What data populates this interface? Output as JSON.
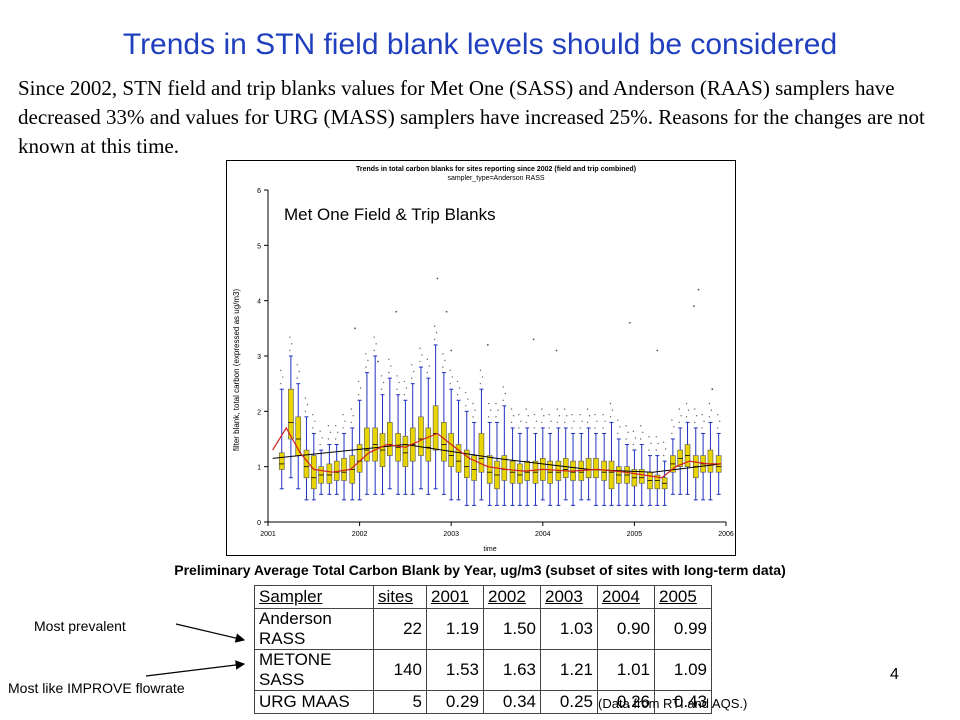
{
  "slide": {
    "title": "Trends in STN field blank levels should be considered",
    "body": "Since 2002, STN field and trip blanks values for Met One (SASS) and Anderson (RAAS) samplers have decreased 33% and values for URG (MASS) samplers have increased 25%.  Reasons for the changes are not known at this time.",
    "page_number": "4",
    "source_note": "(Data from RTI and AQS.)",
    "callout_prevalent": "Most prevalent",
    "callout_improve": "Most like IMPROVE flowrate",
    "table_caption": "Preliminary Average Total Carbon Blank by Year, ug/m3 (subset of sites with long-term data)"
  },
  "table": {
    "headers": [
      "Sampler",
      "sites",
      "2001",
      "2002",
      "2003",
      "2004",
      "2005"
    ],
    "rows": [
      [
        "Anderson RASS",
        "22",
        "1.19",
        "1.50",
        "1.03",
        "0.90",
        "0.99"
      ],
      [
        "METONE SASS",
        "140",
        "1.53",
        "1.63",
        "1.21",
        "1.01",
        "1.09"
      ],
      [
        "URG MAAS",
        "5",
        "0.29",
        "0.34",
        "0.25",
        "0.26",
        "0.43"
      ]
    ]
  },
  "chart_data": {
    "type": "box",
    "title": "Trends in total carbon blanks for sites reporting since 2002 (field and trip combined)",
    "subtitle": "sampler_type=Anderson RASS",
    "overlay_label": "Met One Field & Trip Blanks",
    "xlabel": "time",
    "ylabel": "filter blank, total carbon (expressed as ug/m3)",
    "xlim": [
      2001,
      2006
    ],
    "ylim": [
      0,
      6
    ],
    "x_ticks": [
      "2001",
      "2002",
      "2003",
      "2004",
      "2005",
      "2006"
    ],
    "y_ticks": [
      "0",
      "1",
      "2",
      "3",
      "4",
      "5",
      "6"
    ],
    "box_color": "#e8d400",
    "whisker_color": "#2030c0",
    "trend_color": "#d02020",
    "linear_color": "#000000",
    "boxes": [
      {
        "x": 2001.15,
        "q1": 0.95,
        "med": 1.05,
        "q3": 1.25,
        "lo": 0.6,
        "hi": 2.4
      },
      {
        "x": 2001.25,
        "q1": 1.5,
        "med": 1.8,
        "q3": 2.4,
        "lo": 0.8,
        "hi": 3.0
      },
      {
        "x": 2001.33,
        "q1": 1.2,
        "med": 1.5,
        "q3": 1.9,
        "lo": 0.6,
        "hi": 2.5
      },
      {
        "x": 2001.42,
        "q1": 0.8,
        "med": 1.0,
        "q3": 1.3,
        "lo": 0.4,
        "hi": 1.9
      },
      {
        "x": 2001.5,
        "q1": 0.6,
        "med": 0.8,
        "q3": 1.2,
        "lo": 0.4,
        "hi": 1.6
      },
      {
        "x": 2001.58,
        "q1": 0.7,
        "med": 0.85,
        "q3": 1.0,
        "lo": 0.5,
        "hi": 1.3
      },
      {
        "x": 2001.67,
        "q1": 0.7,
        "med": 0.85,
        "q3": 1.05,
        "lo": 0.5,
        "hi": 1.4
      },
      {
        "x": 2001.75,
        "q1": 0.75,
        "med": 0.9,
        "q3": 1.1,
        "lo": 0.5,
        "hi": 1.4
      },
      {
        "x": 2001.83,
        "q1": 0.75,
        "med": 0.9,
        "q3": 1.15,
        "lo": 0.4,
        "hi": 1.6
      },
      {
        "x": 2001.92,
        "q1": 0.7,
        "med": 0.95,
        "q3": 1.2,
        "lo": 0.4,
        "hi": 1.7
      },
      {
        "x": 2002.0,
        "q1": 0.9,
        "med": 1.1,
        "q3": 1.4,
        "lo": 0.4,
        "hi": 2.2
      },
      {
        "x": 2002.08,
        "q1": 1.1,
        "med": 1.3,
        "q3": 1.7,
        "lo": 0.5,
        "hi": 2.7
      },
      {
        "x": 2002.17,
        "q1": 1.1,
        "med": 1.4,
        "q3": 1.7,
        "lo": 0.5,
        "hi": 3.0
      },
      {
        "x": 2002.25,
        "q1": 1.0,
        "med": 1.3,
        "q3": 1.6,
        "lo": 0.5,
        "hi": 2.3
      },
      {
        "x": 2002.33,
        "q1": 1.2,
        "med": 1.4,
        "q3": 1.8,
        "lo": 0.6,
        "hi": 2.6
      },
      {
        "x": 2002.42,
        "q1": 1.1,
        "med": 1.35,
        "q3": 1.6,
        "lo": 0.5,
        "hi": 2.3
      },
      {
        "x": 2002.5,
        "q1": 1.0,
        "med": 1.25,
        "q3": 1.55,
        "lo": 0.5,
        "hi": 2.2
      },
      {
        "x": 2002.58,
        "q1": 1.1,
        "med": 1.4,
        "q3": 1.7,
        "lo": 0.5,
        "hi": 2.5
      },
      {
        "x": 2002.67,
        "q1": 1.2,
        "med": 1.5,
        "q3": 1.9,
        "lo": 0.6,
        "hi": 2.8
      },
      {
        "x": 2002.75,
        "q1": 1.1,
        "med": 1.35,
        "q3": 1.7,
        "lo": 0.5,
        "hi": 2.6
      },
      {
        "x": 2002.83,
        "q1": 1.3,
        "med": 1.6,
        "q3": 2.1,
        "lo": 0.6,
        "hi": 3.2
      },
      {
        "x": 2002.92,
        "q1": 1.1,
        "med": 1.4,
        "q3": 1.8,
        "lo": 0.5,
        "hi": 2.7
      },
      {
        "x": 2003.0,
        "q1": 1.0,
        "med": 1.2,
        "q3": 1.6,
        "lo": 0.4,
        "hi": 2.4
      },
      {
        "x": 2003.08,
        "q1": 0.9,
        "med": 1.1,
        "q3": 1.4,
        "lo": 0.4,
        "hi": 2.2
      },
      {
        "x": 2003.17,
        "q1": 0.8,
        "med": 1.0,
        "q3": 1.3,
        "lo": 0.3,
        "hi": 2.0
      },
      {
        "x": 2003.25,
        "q1": 0.75,
        "med": 0.95,
        "q3": 1.2,
        "lo": 0.3,
        "hi": 1.8
      },
      {
        "x": 2003.33,
        "q1": 0.9,
        "med": 1.15,
        "q3": 1.6,
        "lo": 0.4,
        "hi": 2.4
      },
      {
        "x": 2003.42,
        "q1": 0.7,
        "med": 0.9,
        "q3": 1.2,
        "lo": 0.3,
        "hi": 1.8
      },
      {
        "x": 2003.5,
        "q1": 0.6,
        "med": 0.85,
        "q3": 1.1,
        "lo": 0.3,
        "hi": 1.8
      },
      {
        "x": 2003.58,
        "q1": 0.75,
        "med": 0.95,
        "q3": 1.2,
        "lo": 0.3,
        "hi": 2.1
      },
      {
        "x": 2003.67,
        "q1": 0.7,
        "med": 0.9,
        "q3": 1.1,
        "lo": 0.3,
        "hi": 1.7
      },
      {
        "x": 2003.75,
        "q1": 0.7,
        "med": 0.85,
        "q3": 1.05,
        "lo": 0.3,
        "hi": 1.6
      },
      {
        "x": 2003.83,
        "q1": 0.75,
        "med": 0.9,
        "q3": 1.1,
        "lo": 0.3,
        "hi": 1.7
      },
      {
        "x": 2003.92,
        "q1": 0.7,
        "med": 0.9,
        "q3": 1.1,
        "lo": 0.3,
        "hi": 1.6
      },
      {
        "x": 2004.0,
        "q1": 0.75,
        "med": 0.95,
        "q3": 1.15,
        "lo": 0.4,
        "hi": 1.7
      },
      {
        "x": 2004.08,
        "q1": 0.7,
        "med": 0.9,
        "q3": 1.1,
        "lo": 0.3,
        "hi": 1.6
      },
      {
        "x": 2004.17,
        "q1": 0.75,
        "med": 0.9,
        "q3": 1.1,
        "lo": 0.3,
        "hi": 1.7
      },
      {
        "x": 2004.25,
        "q1": 0.8,
        "med": 0.95,
        "q3": 1.15,
        "lo": 0.4,
        "hi": 1.7
      },
      {
        "x": 2004.33,
        "q1": 0.75,
        "med": 0.9,
        "q3": 1.1,
        "lo": 0.3,
        "hi": 1.6
      },
      {
        "x": 2004.42,
        "q1": 0.75,
        "med": 0.9,
        "q3": 1.1,
        "lo": 0.4,
        "hi": 1.6
      },
      {
        "x": 2004.5,
        "q1": 0.8,
        "med": 0.95,
        "q3": 1.15,
        "lo": 0.4,
        "hi": 1.7
      },
      {
        "x": 2004.58,
        "q1": 0.8,
        "med": 0.95,
        "q3": 1.15,
        "lo": 0.3,
        "hi": 1.6
      },
      {
        "x": 2004.67,
        "q1": 0.75,
        "med": 0.9,
        "q3": 1.1,
        "lo": 0.3,
        "hi": 1.6
      },
      {
        "x": 2004.75,
        "q1": 0.6,
        "med": 0.9,
        "q3": 1.1,
        "lo": 0.3,
        "hi": 1.8
      },
      {
        "x": 2004.83,
        "q1": 0.7,
        "med": 0.85,
        "q3": 1.0,
        "lo": 0.3,
        "hi": 1.5
      },
      {
        "x": 2004.92,
        "q1": 0.7,
        "med": 0.85,
        "q3": 1.0,
        "lo": 0.3,
        "hi": 1.4
      },
      {
        "x": 2005.0,
        "q1": 0.65,
        "med": 0.8,
        "q3": 0.95,
        "lo": 0.3,
        "hi": 1.3
      },
      {
        "x": 2005.08,
        "q1": 0.7,
        "med": 0.8,
        "q3": 0.95,
        "lo": 0.3,
        "hi": 1.4
      },
      {
        "x": 2005.17,
        "q1": 0.6,
        "med": 0.75,
        "q3": 0.9,
        "lo": 0.3,
        "hi": 1.2
      },
      {
        "x": 2005.25,
        "q1": 0.6,
        "med": 0.75,
        "q3": 0.85,
        "lo": 0.3,
        "hi": 1.2
      },
      {
        "x": 2005.33,
        "q1": 0.6,
        "med": 0.7,
        "q3": 0.8,
        "lo": 0.3,
        "hi": 1.1
      },
      {
        "x": 2005.42,
        "q1": 0.9,
        "med": 1.05,
        "q3": 1.2,
        "lo": 0.5,
        "hi": 1.5
      },
      {
        "x": 2005.5,
        "q1": 1.0,
        "med": 1.15,
        "q3": 1.3,
        "lo": 0.5,
        "hi": 1.7
      },
      {
        "x": 2005.58,
        "q1": 1.0,
        "med": 1.2,
        "q3": 1.4,
        "lo": 0.5,
        "hi": 1.8
      },
      {
        "x": 2005.67,
        "q1": 0.8,
        "med": 1.0,
        "q3": 1.2,
        "lo": 0.4,
        "hi": 1.7
      },
      {
        "x": 2005.75,
        "q1": 0.9,
        "med": 1.05,
        "q3": 1.2,
        "lo": 0.4,
        "hi": 1.6
      },
      {
        "x": 2005.83,
        "q1": 0.9,
        "med": 1.05,
        "q3": 1.3,
        "lo": 0.4,
        "hi": 1.8
      },
      {
        "x": 2005.92,
        "q1": 0.9,
        "med": 1.0,
        "q3": 1.2,
        "lo": 0.5,
        "hi": 1.6
      }
    ],
    "trend": [
      [
        2001.05,
        1.3
      ],
      [
        2001.2,
        1.7
      ],
      [
        2001.35,
        1.25
      ],
      [
        2001.5,
        0.95
      ],
      [
        2001.7,
        0.9
      ],
      [
        2001.9,
        0.95
      ],
      [
        2002.1,
        1.25
      ],
      [
        2002.3,
        1.4
      ],
      [
        2002.5,
        1.35
      ],
      [
        2002.7,
        1.5
      ],
      [
        2002.85,
        1.6
      ],
      [
        2003.0,
        1.4
      ],
      [
        2003.2,
        1.15
      ],
      [
        2003.4,
        1.0
      ],
      [
        2003.6,
        0.95
      ],
      [
        2003.8,
        0.92
      ],
      [
        2004.0,
        0.95
      ],
      [
        2004.3,
        0.92
      ],
      [
        2004.6,
        0.95
      ],
      [
        2004.9,
        0.9
      ],
      [
        2005.1,
        0.85
      ],
      [
        2005.3,
        0.8
      ],
      [
        2005.45,
        1.0
      ],
      [
        2005.6,
        1.1
      ],
      [
        2005.8,
        1.05
      ],
      [
        2005.95,
        1.05
      ]
    ],
    "linear_trend": [
      [
        2001.05,
        1.15
      ],
      [
        2002.5,
        1.4
      ],
      [
        2003.5,
        1.15
      ],
      [
        2004.5,
        0.95
      ],
      [
        2005.2,
        0.9
      ],
      [
        2005.95,
        1.05
      ]
    ],
    "outliers": [
      [
        2001.95,
        3.5
      ],
      [
        2002.4,
        3.8
      ],
      [
        2002.85,
        4.4
      ],
      [
        2002.95,
        3.8
      ],
      [
        2003.4,
        3.2
      ],
      [
        2003.9,
        3.3
      ],
      [
        2004.15,
        3.1
      ],
      [
        2004.95,
        3.6
      ],
      [
        2005.65,
        3.9
      ],
      [
        2005.7,
        4.2
      ],
      [
        2005.25,
        3.1
      ],
      [
        2005.85,
        2.4
      ],
      [
        2002.2,
        2.9
      ],
      [
        2003.0,
        3.1
      ]
    ]
  }
}
